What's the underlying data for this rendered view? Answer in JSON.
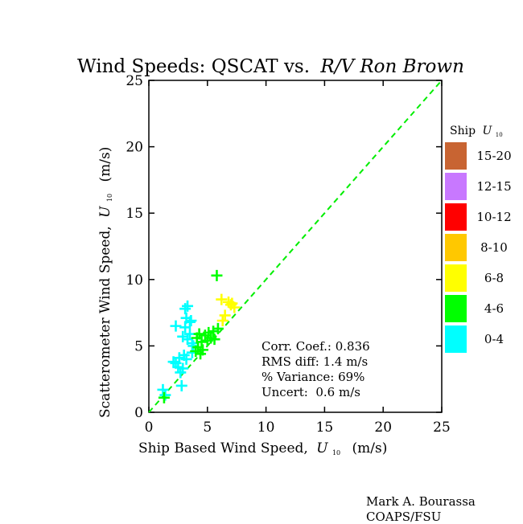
{
  "chart_data": {
    "type": "scatter",
    "title": "Wind Speeds: QSCAT vs.",
    "title_italic": "R/V Ron Brown",
    "xlabel": "Ship Based Wind Speed,",
    "xlabel_symbol": "U",
    "xlabel_sub": "10",
    "xlabel_units": "(m/s)",
    "ylabel": "Scatterometer Wind Speed,",
    "ylabel_symbol": "U",
    "ylabel_sub": "10",
    "ylabel_units": "(m/s)",
    "xlim": [
      0,
      25
    ],
    "ylim": [
      0,
      25
    ],
    "xticks": [
      "0",
      "5",
      "10",
      "15",
      "20",
      "25"
    ],
    "yticks": [
      "0",
      "5",
      "10",
      "15",
      "20",
      "25"
    ],
    "grid": false,
    "one_to_one_line": {
      "from": [
        0,
        0
      ],
      "to": [
        25,
        25
      ],
      "color": "#00ee00",
      "style": "dashed"
    },
    "stats": [
      "Corr. Coef.: 0.836",
      "RMS diff: 1.4 m/s",
      "% Variance: 69%",
      "Uncert:  0.6 m/s"
    ],
    "legend": {
      "title": "Ship",
      "title_symbol": "U",
      "title_sub": "10",
      "placement": "right",
      "entries": [
        {
          "label": "15-20",
          "color": "#c86432"
        },
        {
          "label": "12-15",
          "color": "#c878ff"
        },
        {
          "label": "10-12",
          "color": "#ff0000"
        },
        {
          "label": "8-10",
          "color": "#ffc800"
        },
        {
          "label": "6-8",
          "color": "#ffff00"
        },
        {
          "label": "4-6",
          "color": "#00ff00"
        },
        {
          "label": "0-4",
          "color": "#00ffff"
        }
      ]
    },
    "series": [
      {
        "color": "#00ffff",
        "points": [
          [
            1.2,
            1.7
          ],
          [
            1.4,
            1.3
          ],
          [
            2.3,
            3.7
          ],
          [
            2.5,
            3.4
          ],
          [
            2.7,
            3.0
          ],
          [
            2.6,
            4.1
          ],
          [
            2.9,
            3.3
          ],
          [
            2.8,
            2.0
          ],
          [
            3.0,
            4.3
          ],
          [
            3.2,
            4.0
          ],
          [
            2.3,
            6.5
          ],
          [
            2.9,
            5.7
          ],
          [
            3.1,
            6.4
          ],
          [
            3.3,
            5.5
          ],
          [
            3.5,
            5.9
          ],
          [
            3.7,
            5.2
          ],
          [
            3.2,
            7.1
          ],
          [
            3.5,
            6.8
          ],
          [
            3.6,
            6.9
          ],
          [
            3.1,
            7.8
          ],
          [
            3.3,
            8.0
          ],
          [
            3.7,
            4.5
          ],
          [
            3.8,
            5.0
          ],
          [
            2.1,
            3.8
          ]
        ]
      },
      {
        "color": "#00ff00",
        "points": [
          [
            1.3,
            1.1
          ],
          [
            4.0,
            4.6
          ],
          [
            4.2,
            4.9
          ],
          [
            4.4,
            4.4
          ],
          [
            4.1,
            5.6
          ],
          [
            4.5,
            5.3
          ],
          [
            4.6,
            4.7
          ],
          [
            4.8,
            5.8
          ],
          [
            5.0,
            5.4
          ],
          [
            5.1,
            6.0
          ],
          [
            5.3,
            5.6
          ],
          [
            5.5,
            6.1
          ],
          [
            5.6,
            5.5
          ],
          [
            4.3,
            5.9
          ],
          [
            5.9,
            6.3
          ],
          [
            5.8,
            10.3
          ]
        ]
      },
      {
        "color": "#ffff00",
        "points": [
          [
            6.2,
            8.5
          ],
          [
            6.5,
            7.3
          ],
          [
            6.8,
            8.3
          ],
          [
            7.0,
            8.1
          ],
          [
            7.3,
            7.9
          ],
          [
            6.3,
            6.9
          ],
          [
            7.1,
            8.2
          ]
        ]
      }
    ]
  },
  "credit": {
    "author": "Mark A. Bourassa",
    "org": "COAPS/FSU"
  }
}
